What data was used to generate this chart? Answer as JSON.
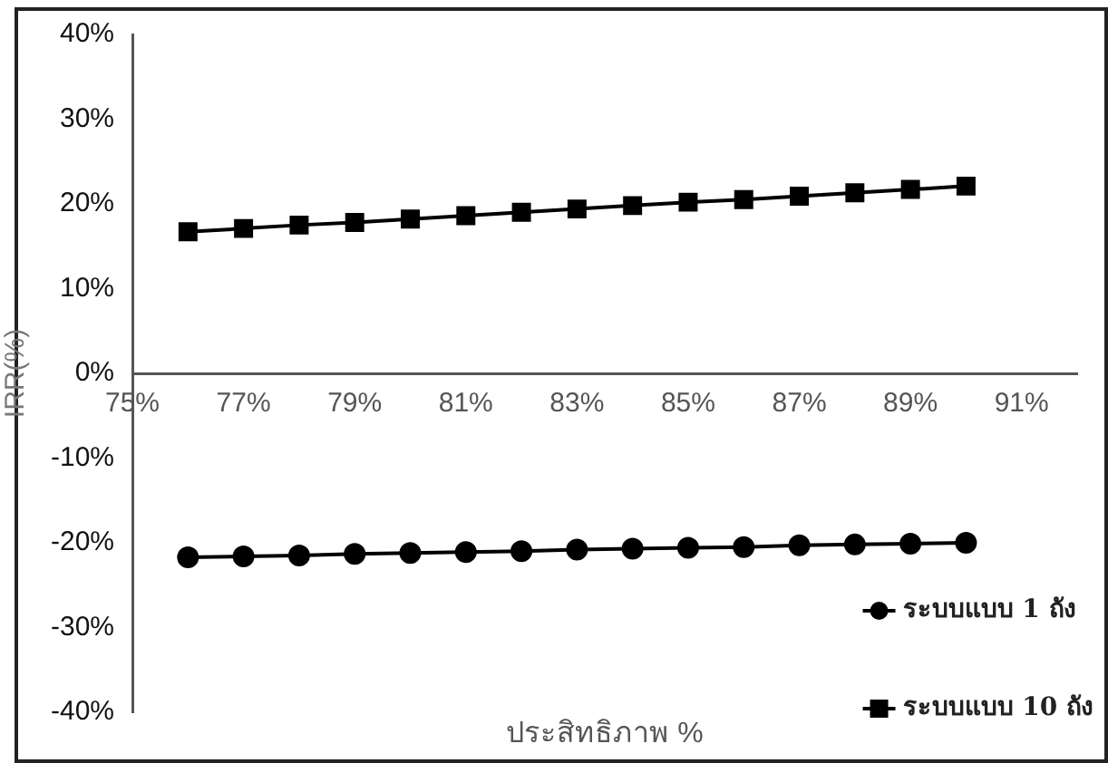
{
  "chart_data": {
    "type": "line",
    "xlabel": "ประสิทธิภาพ %",
    "ylabel": "IRR(%)",
    "x": [
      76,
      77,
      78,
      79,
      80,
      81,
      82,
      83,
      84,
      85,
      86,
      87,
      88,
      89,
      90
    ],
    "xlim": [
      75,
      92
    ],
    "xticks": [
      {
        "value": 75,
        "label": "75%"
      },
      {
        "value": 77,
        "label": "77%"
      },
      {
        "value": 79,
        "label": "79%"
      },
      {
        "value": 81,
        "label": "81%"
      },
      {
        "value": 83,
        "label": "83%"
      },
      {
        "value": 85,
        "label": "85%"
      },
      {
        "value": 87,
        "label": "87%"
      },
      {
        "value": 89,
        "label": "89%"
      },
      {
        "value": 91,
        "label": "91%"
      }
    ],
    "ylim": [
      -40,
      40
    ],
    "yticks": [
      {
        "value": -40,
        "label": "-40%"
      },
      {
        "value": -30,
        "label": "-30%"
      },
      {
        "value": -20,
        "label": "-20%"
      },
      {
        "value": -10,
        "label": "-10%"
      },
      {
        "value": 0,
        "label": "0%"
      },
      {
        "value": 10,
        "label": "10%"
      },
      {
        "value": 20,
        "label": "20%"
      },
      {
        "value": 30,
        "label": "30%"
      },
      {
        "value": 40,
        "label": "40%"
      }
    ],
    "series": [
      {
        "name": "ระบบแบบ 1 ถัง",
        "color": "#000000",
        "marker": "circle",
        "values": [
          -21.7,
          -21.6,
          -21.5,
          -21.3,
          -21.2,
          -21.1,
          -21.0,
          -20.8,
          -20.7,
          -20.6,
          -20.5,
          -20.3,
          -20.2,
          -20.1,
          -20.0
        ]
      },
      {
        "name": "ระบบแบบ 10 ถัง",
        "color": "#000000",
        "marker": "square",
        "values": [
          16.7,
          17.1,
          17.5,
          17.8,
          18.2,
          18.6,
          19.0,
          19.4,
          19.8,
          20.2,
          20.5,
          20.9,
          21.3,
          21.7,
          22.1
        ]
      }
    ],
    "grid": false,
    "legend": "bottom right",
    "line_style": "solid"
  }
}
